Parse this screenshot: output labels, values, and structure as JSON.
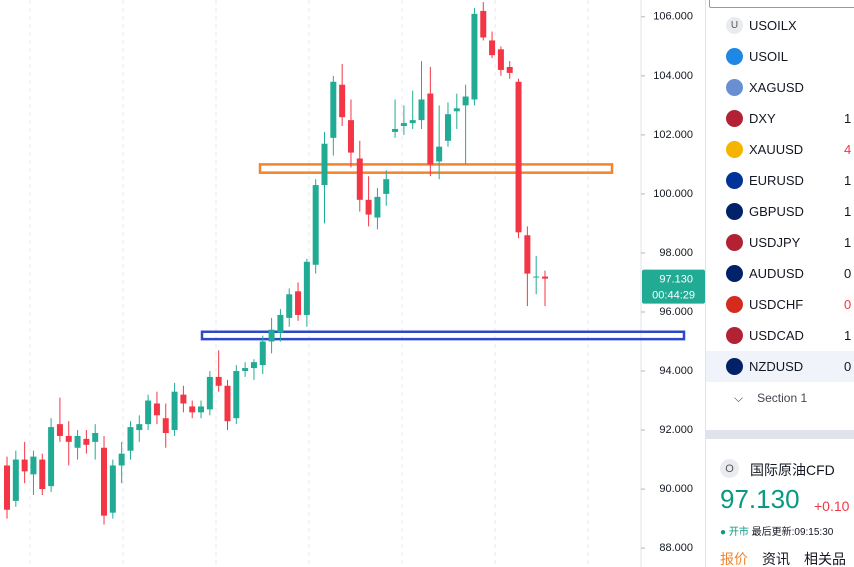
{
  "chart_data": {
    "type": "candlestick",
    "open": [
      90.8,
      89.6,
      91.0,
      90.5,
      91.0,
      90.1,
      92.2,
      91.8,
      91.4,
      91.7,
      91.6,
      91.4,
      89.2,
      90.8,
      91.3,
      92.0,
      92.2,
      92.9,
      92.4,
      92.0,
      93.2,
      92.8,
      92.6,
      92.7,
      93.8,
      93.5,
      92.4,
      94.0,
      94.1,
      94.2,
      95.0,
      95.3,
      95.8,
      96.7,
      95.9,
      97.6,
      100.3,
      101.9,
      103.7,
      102.5,
      101.2,
      99.8,
      99.2,
      100.0,
      102.1,
      102.3,
      102.4,
      102.5,
      103.4,
      101.1,
      101.8,
      102.8,
      103.0,
      103.2,
      106.2,
      105.2,
      104.9,
      104.3,
      103.8,
      98.6,
      97.2,
      97.2
    ],
    "high": [
      91.1,
      91.3,
      91.6,
      91.3,
      91.2,
      92.4,
      93.1,
      92.3,
      92.0,
      92.0,
      92.2,
      91.8,
      91.0,
      91.6,
      92.3,
      92.5,
      93.2,
      93.3,
      92.9,
      93.6,
      93.5,
      93.0,
      93.0,
      94.0,
      94.7,
      93.7,
      94.2,
      94.3,
      94.4,
      95.2,
      95.8,
      96.1,
      96.8,
      97.0,
      97.8,
      100.5,
      102.1,
      104.0,
      104.4,
      103.2,
      101.8,
      100.6,
      100.2,
      100.8,
      103.2,
      103.0,
      103.5,
      104.5,
      104.3,
      103.0,
      103.1,
      103.4,
      103.7,
      106.3,
      106.5,
      105.5,
      105.0,
      104.5,
      103.9,
      98.9,
      97.9,
      97.4
    ],
    "low": [
      89.0,
      89.4,
      90.2,
      89.8,
      89.8,
      89.9,
      91.6,
      90.8,
      91.0,
      91.2,
      91.0,
      88.8,
      89.0,
      90.2,
      91.0,
      91.6,
      92.0,
      92.2,
      91.4,
      91.8,
      92.6,
      92.4,
      92.4,
      92.5,
      93.3,
      92.0,
      92.2,
      93.8,
      93.7,
      93.9,
      94.6,
      95.0,
      95.5,
      95.7,
      95.5,
      97.3,
      99.0,
      101.3,
      102.3,
      100.9,
      99.4,
      98.9,
      98.8,
      99.6,
      101.9,
      102.0,
      102.2,
      102.2,
      100.6,
      100.5,
      101.6,
      102.2,
      101.0,
      103.0,
      105.2,
      104.6,
      104.0,
      103.9,
      98.5,
      96.2,
      96.6,
      96.2
    ],
    "close": [
      89.3,
      91.0,
      90.6,
      91.1,
      90.0,
      92.1,
      91.8,
      91.6,
      91.8,
      91.5,
      91.9,
      89.1,
      90.8,
      91.2,
      92.1,
      92.2,
      93.0,
      92.5,
      91.9,
      93.3,
      92.9,
      92.6,
      92.8,
      93.8,
      93.5,
      92.3,
      94.0,
      94.1,
      94.3,
      95.0,
      95.4,
      95.9,
      96.6,
      95.9,
      97.7,
      100.3,
      101.7,
      103.8,
      102.6,
      101.4,
      99.8,
      99.3,
      99.9,
      100.5,
      102.2,
      102.4,
      102.5,
      103.2,
      101.0,
      101.6,
      102.7,
      102.9,
      103.3,
      106.1,
      105.3,
      104.7,
      104.2,
      104.1,
      98.7,
      97.3,
      97.2,
      97.13
    ],
    "up_color": "#22ab94",
    "down_color": "#f23645",
    "ylim": [
      87.36,
      106.57
    ],
    "yticks": [
      {
        "value": 88,
        "label": "88.000"
      },
      {
        "value": 90,
        "label": "90.000"
      },
      {
        "value": 92,
        "label": "92.000"
      },
      {
        "value": 94,
        "label": "94.000"
      },
      {
        "value": 96,
        "label": "96.000"
      },
      {
        "value": 98,
        "label": "98.000"
      },
      {
        "value": 100,
        "label": "100.000"
      },
      {
        "value": 102,
        "label": "102.000"
      },
      {
        "value": 104,
        "label": "104.000"
      },
      {
        "value": 106,
        "label": "106.000"
      }
    ],
    "price_label": {
      "value": 97.13,
      "label": "97.130"
    },
    "countdown": "00:44:29",
    "zones": [
      {
        "top": 101.0,
        "bottom": 100.72,
        "color": "#f0852d"
      },
      {
        "top": 95.33,
        "bottom": 95.08,
        "color": "#2f48c9"
      }
    ]
  },
  "watchlist": {
    "rows": [
      {
        "icon": "U",
        "symbol": "USOILX",
        "value": ""
      },
      {
        "symbol": "USOIL",
        "value": ""
      },
      {
        "symbol": "XAGUSD",
        "value": ""
      },
      {
        "symbol": "DXY",
        "value": "1"
      },
      {
        "symbol": "XAUUSD",
        "value": "4",
        "color": "#f23645"
      },
      {
        "symbol": "EURUSD",
        "value": "1"
      },
      {
        "symbol": "GBPUSD",
        "value": "1"
      },
      {
        "symbol": "USDJPY",
        "value": "1"
      },
      {
        "symbol": "AUDUSD",
        "value": "0"
      },
      {
        "symbol": "USDCHF",
        "value": "0",
        "color": "#f23645"
      },
      {
        "symbol": "USDCAD",
        "value": "1"
      },
      {
        "symbol": "NZDUSD",
        "value": "0"
      }
    ],
    "section": "Section 1"
  },
  "detail": {
    "icon": "O",
    "name": "国际原油CFD",
    "price": "97.130",
    "change": "+0.10",
    "status": "开市",
    "updated": "最后更新:09:15:30",
    "tabs": [
      "报价",
      "资讯",
      "相关品"
    ]
  }
}
